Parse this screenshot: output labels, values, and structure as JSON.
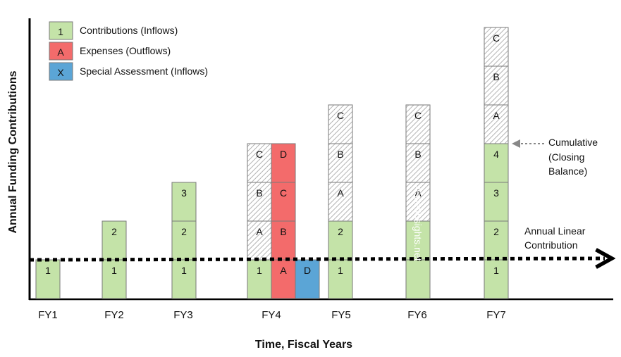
{
  "colors": {
    "inflow": "#c4e3a8",
    "outflow": "#f36b6b",
    "special": "#5ba5d6",
    "cumulative_hatch": "#9a9a9a",
    "border": "#7a7a7a",
    "axis": "#000000"
  },
  "legend": [
    {
      "symbol": "1",
      "label": "Contributions (Inflows)",
      "kind": "inflow"
    },
    {
      "symbol": "A",
      "label": "Expenses (Outflows)",
      "kind": "outflow"
    },
    {
      "symbol": "X",
      "label": "Special Assessment (Inflows)",
      "kind": "special"
    }
  ],
  "axes": {
    "x_title": "Time, Fiscal Years",
    "y_title": "Annual Funding Contributions"
  },
  "annotations": {
    "cumulative": [
      "Cumulative",
      "(Closing",
      "Balance)"
    ],
    "linear": [
      "Annual Linear",
      "Contribution"
    ],
    "watermark": "AssetInsights.net"
  },
  "chart_data": {
    "type": "bar",
    "categories": [
      "FY1",
      "FY2",
      "FY3",
      "FY4",
      "FY5",
      "FY6",
      "FY7"
    ],
    "stacks": [
      {
        "year": "FY1",
        "cells": [
          {
            "label": "1",
            "kind": "inflow"
          }
        ]
      },
      {
        "year": "FY2",
        "cells": [
          {
            "label": "1",
            "kind": "inflow"
          },
          {
            "label": "2",
            "kind": "inflow"
          }
        ]
      },
      {
        "year": "FY3",
        "cells": [
          {
            "label": "1",
            "kind": "inflow"
          },
          {
            "label": "2",
            "kind": "inflow"
          },
          {
            "label": "3",
            "kind": "inflow"
          }
        ]
      },
      {
        "year": "FY4",
        "cells": [
          {
            "label": "1",
            "kind": "inflow"
          },
          {
            "label": "A",
            "kind": "cumulative"
          },
          {
            "label": "B",
            "kind": "cumulative"
          },
          {
            "label": "C",
            "kind": "cumulative"
          }
        ]
      },
      {
        "year": "FY4",
        "cells": [
          {
            "label": "A",
            "kind": "outflow"
          },
          {
            "label": "B",
            "kind": "outflow"
          },
          {
            "label": "C",
            "kind": "outflow"
          },
          {
            "label": "D",
            "kind": "outflow"
          }
        ]
      },
      {
        "year": "FY4",
        "cells": [
          {
            "label": "D",
            "kind": "special"
          }
        ]
      },
      {
        "year": "FY5",
        "cells": [
          {
            "label": "1",
            "kind": "inflow"
          },
          {
            "label": "2",
            "kind": "inflow"
          },
          {
            "label": "A",
            "kind": "cumulative"
          },
          {
            "label": "B",
            "kind": "cumulative"
          },
          {
            "label": "C",
            "kind": "cumulative"
          }
        ]
      },
      {
        "year": "FY6",
        "cells": [
          {
            "label": "",
            "kind": "inflow"
          },
          {
            "label": "",
            "kind": "inflow"
          },
          {
            "label": "A",
            "kind": "cumulative"
          },
          {
            "label": "B",
            "kind": "cumulative"
          },
          {
            "label": "C",
            "kind": "cumulative"
          }
        ]
      },
      {
        "year": "FY7",
        "cells": [
          {
            "label": "1",
            "kind": "inflow"
          },
          {
            "label": "2",
            "kind": "inflow"
          },
          {
            "label": "3",
            "kind": "inflow"
          },
          {
            "label": "4",
            "kind": "inflow"
          },
          {
            "label": "A",
            "kind": "cumulative"
          },
          {
            "label": "B",
            "kind": "cumulative"
          },
          {
            "label": "C",
            "kind": "cumulative"
          }
        ]
      }
    ],
    "linear_contribution_level": 1
  }
}
